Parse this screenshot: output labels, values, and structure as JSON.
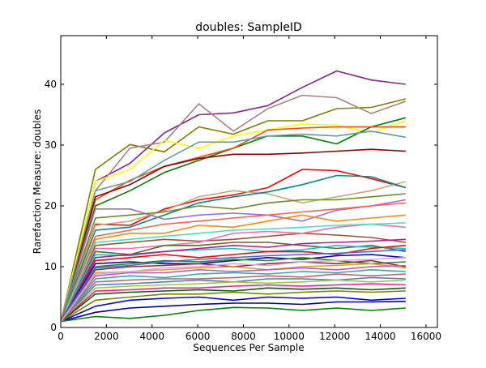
{
  "chart_data": {
    "type": "line",
    "title": "doubles: SampleID",
    "xlabel": "Sequences Per Sample",
    "ylabel": "Rarefaction Measure: doubles",
    "xlim": [
      0,
      16500
    ],
    "ylim": [
      0,
      48
    ],
    "x_ticks": [
      "0",
      "2000",
      "4000",
      "6000",
      "8000",
      "10000",
      "12000",
      "14000",
      "16000"
    ],
    "y_ticks": [
      "0",
      "10",
      "20",
      "30",
      "40"
    ],
    "grid": false,
    "legend": "none",
    "x": [
      10,
      1520,
      3030,
      4540,
      6050,
      7560,
      9070,
      10580,
      12090,
      13600,
      15110
    ],
    "series": [
      {
        "color": "#8b2589",
        "values": [
          1,
          24,
          27,
          32,
          35,
          35.3,
          36.5,
          39.5,
          42.2,
          40.7,
          40
        ]
      },
      {
        "color": "#808000",
        "values": [
          1,
          26,
          30.1,
          28.9,
          33,
          31.8,
          34,
          34,
          36,
          36.2,
          37.6
        ]
      },
      {
        "color": "#b08080",
        "values": [
          1,
          22.5,
          29.5,
          30.5,
          36.8,
          32.3,
          36,
          38.2,
          37.8,
          35.2,
          37.2
        ]
      },
      {
        "color": "#ffff00",
        "values": [
          1,
          24,
          26,
          30.8,
          29.5,
          31.5,
          32.5,
          33.5,
          33.3,
          32,
          34
        ]
      },
      {
        "color": "#008000",
        "values": [
          1,
          20,
          22.5,
          25.5,
          27.5,
          29.5,
          31.5,
          31.5,
          30.2,
          33,
          34.5
        ]
      },
      {
        "color": "#ff4500",
        "values": [
          1,
          21,
          24.2,
          26.5,
          28,
          29.5,
          32.5,
          32.8,
          33,
          33,
          33
        ]
      },
      {
        "color": "#8b0000",
        "values": [
          1,
          21.5,
          23.5,
          26.5,
          27.8,
          28.5,
          28.5,
          28.7,
          29,
          29.3,
          29
        ]
      },
      {
        "color": "#5f9ea0",
        "values": [
          1,
          22.5,
          24,
          27.5,
          30.5,
          30.5,
          31.5,
          31.8,
          31.5,
          32.3,
          31.3
        ]
      },
      {
        "color": "#ff0000",
        "values": [
          1,
          17,
          16.8,
          19.5,
          21,
          21.8,
          23,
          26,
          25.8,
          24.5,
          23
        ]
      },
      {
        "color": "#d2a679",
        "values": [
          1,
          16.8,
          17.5,
          19.2,
          21.5,
          22.5,
          22,
          20.5,
          21.5,
          22.5,
          24
        ]
      },
      {
        "color": "#008b8b",
        "values": [
          1,
          16,
          16.5,
          18.5,
          20.5,
          21.5,
          22.3,
          23.5,
          25,
          24.8,
          23
        ]
      },
      {
        "color": "#9370db",
        "values": [
          1,
          19.5,
          19.5,
          17.8,
          18.5,
          18.8,
          18.5,
          17.5,
          19.3,
          20,
          21
        ]
      },
      {
        "color": "#ff8c00",
        "values": [
          1,
          14.5,
          15.5,
          15.5,
          16.8,
          16.5,
          17.5,
          18.5,
          17.5,
          18,
          18.5
        ]
      },
      {
        "color": "#a0522d",
        "values": [
          1,
          13.5,
          14,
          14.5,
          14.2,
          14.5,
          15,
          15.5,
          15.2,
          14.8,
          14
        ]
      },
      {
        "color": "#ff69b4",
        "values": [
          1,
          13,
          13,
          13.5,
          14,
          15.5,
          15.8,
          15.5,
          16.5,
          17,
          16.5
        ]
      },
      {
        "color": "#556b2f",
        "values": [
          1,
          12.5,
          12,
          13.5,
          13.5,
          14,
          14,
          13.5,
          13,
          13.5,
          12.5
        ]
      },
      {
        "color": "#00ced1",
        "values": [
          1,
          12,
          11.8,
          12.5,
          12.8,
          13,
          12.5,
          12.8,
          13.5,
          13.2,
          13
        ]
      },
      {
        "color": "#ff0000",
        "values": [
          1,
          11,
          11.5,
          12,
          11.5,
          12,
          12.5,
          12.5,
          12,
          13,
          13.5
        ]
      },
      {
        "color": "#0000cd",
        "values": [
          1,
          10.5,
          10.8,
          10.5,
          10.5,
          11,
          11.5,
          11.2,
          11.8,
          12,
          11.5
        ]
      },
      {
        "color": "#228b22",
        "values": [
          1,
          10,
          10.5,
          11,
          10.8,
          11.2,
          11,
          11.5,
          11,
          10.5,
          10.8
        ]
      },
      {
        "color": "#b22222",
        "values": [
          1,
          9.5,
          10,
          10.2,
          10.5,
          10,
          10.5,
          10.8,
          10.5,
          11,
          10
        ]
      },
      {
        "color": "#daa520",
        "values": [
          1,
          9,
          9.2,
          9.5,
          9.8,
          10,
          9.5,
          10,
          10.2,
          10.5,
          9.8
        ]
      },
      {
        "color": "#ba55d3",
        "values": [
          1,
          8.5,
          9,
          9,
          9.5,
          9.2,
          9.5,
          9.8,
          9.5,
          10,
          10.2
        ]
      },
      {
        "color": "#20b2aa",
        "values": [
          1,
          8,
          8.5,
          8.2,
          8.8,
          9,
          8.8,
          9.2,
          9,
          9.5,
          9.2
        ]
      },
      {
        "color": "#cd5c5c",
        "values": [
          1,
          7.5,
          7.8,
          8,
          8,
          8.2,
          8.5,
          8.3,
          8.8,
          8.5,
          8.8
        ]
      },
      {
        "color": "#4682b4",
        "values": [
          1,
          7,
          7.2,
          7.5,
          7.8,
          7.5,
          8,
          8,
          7.8,
          8.2,
          8
        ]
      },
      {
        "color": "#9acd32",
        "values": [
          1,
          6.5,
          6.8,
          7,
          7.2,
          7.5,
          7.3,
          7.5,
          7.8,
          7.5,
          7.8
        ]
      },
      {
        "color": "#ff1493",
        "values": [
          1,
          6,
          6.2,
          6.5,
          6.5,
          6.8,
          7,
          6.8,
          7,
          7.2,
          7
        ]
      },
      {
        "color": "#006400",
        "values": [
          1,
          5.5,
          5.8,
          6,
          6.2,
          6,
          6.5,
          6.3,
          6.5,
          6.2,
          6.5
        ]
      },
      {
        "color": "#0000ff",
        "values": [
          1,
          3.5,
          4.5,
          4.8,
          5,
          4.5,
          5,
          4.8,
          5,
          4.5,
          4.8
        ]
      },
      {
        "color": "#00008b",
        "values": [
          1,
          2.5,
          3.2,
          3.5,
          3.8,
          4,
          4,
          3.8,
          4.2,
          4.2,
          4.3
        ]
      },
      {
        "color": "#008000",
        "values": [
          1,
          1.8,
          1.5,
          2,
          2.8,
          3.3,
          3.2,
          2.8,
          3.2,
          2.8,
          3.2
        ]
      },
      {
        "color": "#808000",
        "values": [
          1,
          4.5,
          5,
          5.5,
          5.5,
          5.8,
          5.5,
          5.8,
          6,
          5.8,
          6
        ]
      },
      {
        "color": "#ff6347",
        "values": [
          1,
          15,
          16,
          17,
          17.5,
          18,
          18.5,
          19,
          19.5,
          20,
          20.5
        ]
      },
      {
        "color": "#40e0d0",
        "values": [
          1,
          14,
          14.5,
          15,
          15.5,
          16,
          16.2,
          16.5,
          16.8,
          17,
          17.2
        ]
      },
      {
        "color": "#6b8e23",
        "values": [
          1,
          18,
          18.5,
          19,
          20,
          19.5,
          20.5,
          21,
          21,
          21.5,
          22
        ]
      },
      {
        "color": "#c71585",
        "values": [
          1,
          11.5,
          12,
          12.5,
          13,
          13.5,
          13.2,
          13.8,
          14,
          14.2,
          14.5
        ]
      },
      {
        "color": "#4169e1",
        "values": [
          1,
          9.8,
          10.2,
          10.8,
          11.2,
          11.5,
          11.8,
          12,
          12.2,
          12.5,
          12.8
        ]
      },
      {
        "color": "#dda0dd",
        "values": [
          1,
          8.8,
          9.2,
          9.8,
          10,
          10.5,
          10.2,
          10.8,
          11,
          11.2,
          11.5
        ]
      }
    ]
  }
}
